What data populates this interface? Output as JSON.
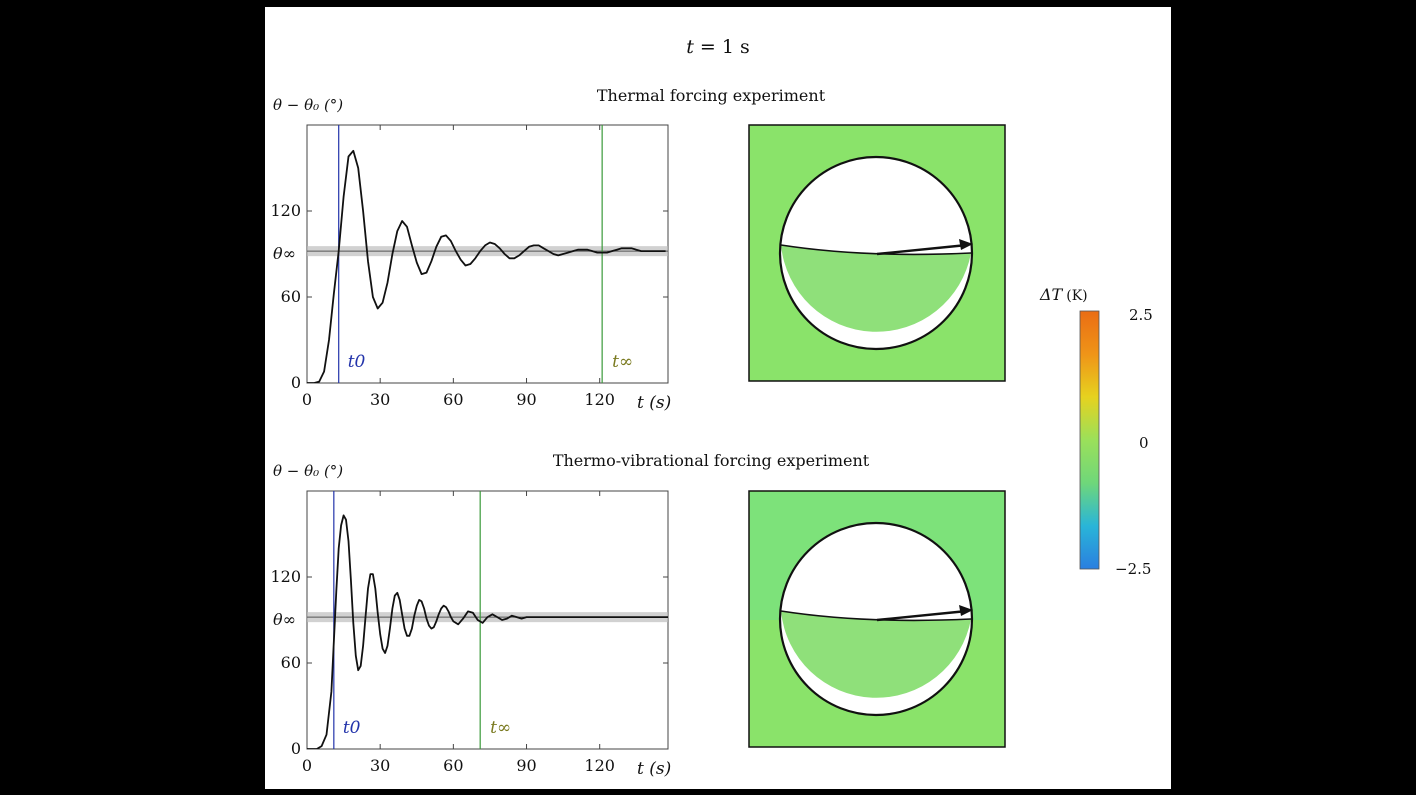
{
  "header": {
    "time_symbol": "t",
    "time_eq": " = 1 s"
  },
  "colorbar": {
    "label_symbol": "ΔT",
    "label_unit": "(K)",
    "tick_labels": [
      "2.5",
      "0",
      "−2.5"
    ],
    "range": [
      -2.5,
      2.5
    ],
    "colors": [
      "#2a7fe0",
      "#29b5d8",
      "#6fd77a",
      "#9be05a",
      "#e6d21f",
      "#ef9418",
      "#ea6d14"
    ]
  },
  "panel_colors": {
    "field": "#8ae36a",
    "liquid": "#8fe07a",
    "field_lower_top": "#7de27a"
  },
  "chart_data": [
    {
      "type": "line",
      "title": "Thermal forcing experiment",
      "ylabel_text": "θ − θ₀ (°)",
      "xlabel_text": "t (s)",
      "xlim": [
        0,
        148
      ],
      "ylim": [
        0,
        180
      ],
      "xticks": [
        0,
        30,
        60,
        90,
        120
      ],
      "yticks": [
        0,
        60,
        120
      ],
      "ytick_labels": [
        "0",
        "60",
        "120"
      ],
      "theta_inf": 92,
      "theta_inf_label": "θ∞",
      "t0": 13,
      "t0_label": "t0",
      "tinf": 121,
      "tinf_label": "t∞",
      "series": [
        {
          "x": [
            0,
            3,
            5,
            7,
            9,
            11,
            13,
            15,
            17,
            19,
            21,
            23,
            25,
            27,
            29,
            31,
            33,
            35,
            37,
            39,
            41,
            43,
            45,
            47,
            49,
            51,
            53,
            55,
            57,
            59,
            61,
            63,
            65,
            67,
            69,
            71,
            73,
            75,
            77,
            79,
            81,
            83,
            85,
            87,
            89,
            91,
            93,
            95,
            97,
            99,
            101,
            103,
            105,
            107,
            109,
            111,
            113,
            115,
            117,
            119,
            121,
            123,
            125,
            127,
            129,
            131,
            133,
            135,
            137,
            139,
            141,
            143,
            145,
            147
          ],
          "y": [
            0,
            0,
            1,
            8,
            30,
            62,
            92,
            130,
            158,
            162,
            150,
            120,
            85,
            60,
            52,
            56,
            70,
            90,
            106,
            113,
            109,
            96,
            84,
            76,
            77,
            85,
            95,
            102,
            103,
            99,
            92,
            86,
            82,
            83,
            87,
            92,
            96,
            98,
            97,
            94,
            90,
            87,
            87,
            89,
            92,
            95,
            96,
            96,
            94,
            92,
            90,
            89,
            90,
            91,
            92,
            93,
            93,
            93,
            92,
            91,
            91,
            91,
            92,
            93,
            94,
            94,
            94,
            93,
            92,
            92,
            92,
            92,
            92,
            92
          ]
        }
      ]
    },
    {
      "type": "line",
      "title": "Thermo-vibrational forcing experiment",
      "ylabel_text": "θ − θ₀ (°)",
      "xlabel_text": "t (s)",
      "xlim": [
        0,
        148
      ],
      "ylim": [
        0,
        180
      ],
      "xticks": [
        0,
        30,
        60,
        90,
        120
      ],
      "yticks": [
        0,
        60,
        120
      ],
      "ytick_labels": [
        "0",
        "60",
        "120"
      ],
      "theta_inf": 92,
      "theta_inf_label": "θ∞",
      "t0": 11,
      "t0_label": "t0",
      "tinf": 71,
      "tinf_label": "t∞",
      "series": [
        {
          "x": [
            0,
            4,
            6,
            8,
            10,
            12,
            13,
            14,
            15,
            16,
            17,
            18,
            19,
            20,
            21,
            22,
            23,
            24,
            25,
            26,
            27,
            28,
            29,
            30,
            31,
            32,
            33,
            34,
            35,
            36,
            37,
            38,
            39,
            40,
            41,
            42,
            43,
            44,
            45,
            46,
            47,
            48,
            49,
            50,
            51,
            52,
            53,
            54,
            55,
            56,
            57,
            58,
            59,
            60,
            62,
            64,
            66,
            68,
            70,
            72,
            74,
            76,
            78,
            80,
            82,
            84,
            86,
            88,
            90,
            95,
            100,
            110,
            120,
            130,
            140,
            148
          ],
          "y": [
            0,
            0,
            2,
            10,
            40,
            110,
            140,
            156,
            163,
            160,
            145,
            118,
            88,
            65,
            55,
            58,
            72,
            92,
            112,
            122,
            122,
            112,
            95,
            80,
            70,
            67,
            72,
            84,
            98,
            107,
            109,
            104,
            94,
            84,
            79,
            79,
            84,
            93,
            100,
            104,
            103,
            98,
            91,
            86,
            84,
            85,
            89,
            94,
            98,
            100,
            99,
            96,
            92,
            89,
            87,
            91,
            96,
            95,
            90,
            88,
            92,
            94,
            92,
            90,
            91,
            93,
            92,
            91,
            92,
            92,
            92,
            92,
            92,
            92,
            92,
            92
          ]
        }
      ]
    }
  ]
}
